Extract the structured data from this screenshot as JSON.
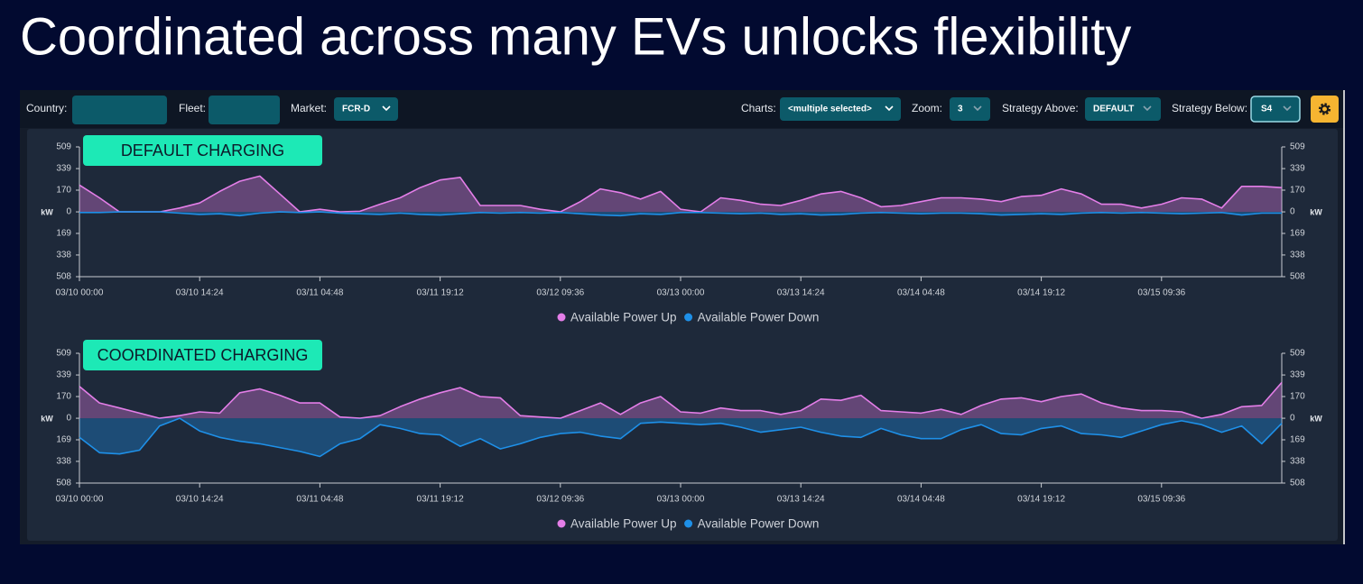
{
  "header": {
    "title": "Coordinated across many EVs unlocks flexibility"
  },
  "toolbar": {
    "country": {
      "label": "Country:"
    },
    "fleet": {
      "label": "Fleet:"
    },
    "market": {
      "label": "Market:",
      "value": "FCR-D"
    },
    "charts": {
      "label": "Charts:",
      "value": "<multiple selected>"
    },
    "zoom": {
      "label": "Zoom:",
      "value": "3"
    },
    "strategy_above": {
      "label": "Strategy Above:",
      "value": "DEFAULT"
    },
    "strategy_below": {
      "label": "Strategy Below:",
      "value": "S4"
    }
  },
  "chart_data": [
    {
      "type": "area",
      "title": "DEFAULT CHARGING",
      "x": [
        "03/10 00:00",
        "03/10 02:24",
        "03/10 04:48",
        "03/10 07:12",
        "03/10 09:36",
        "03/10 12:00",
        "03/10 14:24",
        "03/10 16:48",
        "03/10 19:12",
        "03/10 21:36",
        "03/11 00:00",
        "03/11 02:24",
        "03/11 04:48",
        "03/11 07:12",
        "03/11 09:36",
        "03/11 12:00",
        "03/11 14:24",
        "03/11 16:48",
        "03/11 19:12",
        "03/11 21:36",
        "03/12 00:00",
        "03/12 02:24",
        "03/12 04:48",
        "03/12 07:12",
        "03/12 09:36",
        "03/12 12:00",
        "03/12 14:24",
        "03/12 16:48",
        "03/12 19:12",
        "03/12 21:36",
        "03/13 00:00",
        "03/13 02:24",
        "03/13 04:48",
        "03/13 07:12",
        "03/13 09:36",
        "03/13 12:00",
        "03/13 14:24",
        "03/13 16:48",
        "03/13 19:12",
        "03/13 21:36",
        "03/14 00:00",
        "03/14 02:24",
        "03/14 04:48",
        "03/14 07:12",
        "03/14 09:36",
        "03/14 12:00",
        "03/14 14:24",
        "03/14 16:48",
        "03/14 19:12",
        "03/14 21:36",
        "03/15 00:00",
        "03/15 02:24",
        "03/15 04:48",
        "03/15 07:12",
        "03/15 09:36",
        "03/15 12:00",
        "03/15 14:24",
        "03/15 16:48",
        "03/15 19:12",
        "03/15 21:36",
        "03/16 00:00"
      ],
      "xticks": [
        "03/10 00:00",
        "03/10 14:24",
        "03/11 04:48",
        "03/11 19:12",
        "03/12 09:36",
        "03/13 00:00",
        "03/13 14:24",
        "03/14 04:48",
        "03/14 19:12",
        "03/15 09:36"
      ],
      "ylim": [
        -508,
        509
      ],
      "yticks": [
        509,
        339,
        170,
        0,
        {
          "value": -169,
          "label": "169"
        },
        {
          "value": -338,
          "label": "338"
        },
        {
          "value": -508,
          "label": "508"
        }
      ],
      "y2lim": [
        -508,
        509
      ],
      "y2ticks": [
        509,
        339,
        170,
        0,
        {
          "value": -169,
          "label": "169"
        },
        {
          "value": -338,
          "label": "338"
        },
        {
          "value": -508,
          "label": "508"
        }
      ],
      "y_label": "kW",
      "y2_label": "kW",
      "series": [
        {
          "name": "Available Power Up",
          "color": "#e47ee8",
          "values": [
            210,
            110,
            0,
            0,
            0,
            30,
            70,
            160,
            240,
            280,
            140,
            0,
            20,
            0,
            5,
            60,
            110,
            190,
            250,
            270,
            50,
            50,
            50,
            20,
            0,
            80,
            180,
            150,
            100,
            160,
            20,
            0,
            110,
            90,
            60,
            50,
            90,
            140,
            160,
            110,
            40,
            50,
            80,
            110,
            110,
            100,
            80,
            120,
            130,
            180,
            140,
            60,
            60,
            30,
            60,
            110,
            100,
            30,
            200,
            200,
            190
          ]
        },
        {
          "name": "Available Power Down",
          "color": "#1e90e8",
          "values": [
            -5,
            -5,
            0,
            0,
            0,
            -10,
            -20,
            -15,
            -30,
            -10,
            0,
            -5,
            0,
            -10,
            -15,
            -20,
            -10,
            -20,
            -25,
            -15,
            -5,
            -10,
            -5,
            -10,
            -5,
            -15,
            -25,
            -30,
            -15,
            -20,
            -5,
            -5,
            -10,
            -15,
            -10,
            -20,
            -15,
            -25,
            -20,
            -10,
            -5,
            -10,
            -15,
            -10,
            -10,
            -15,
            -25,
            -20,
            -15,
            -20,
            -10,
            -5,
            -10,
            -5,
            -10,
            -15,
            -10,
            -5,
            -25,
            -10,
            -10
          ]
        }
      ]
    },
    {
      "type": "area",
      "title": "COORDINATED CHARGING",
      "x": [
        "03/10 00:00",
        "03/10 02:24",
        "03/10 04:48",
        "03/10 07:12",
        "03/10 09:36",
        "03/10 12:00",
        "03/10 14:24",
        "03/10 16:48",
        "03/10 19:12",
        "03/10 21:36",
        "03/11 00:00",
        "03/11 02:24",
        "03/11 04:48",
        "03/11 07:12",
        "03/11 09:36",
        "03/11 12:00",
        "03/11 14:24",
        "03/11 16:48",
        "03/11 19:12",
        "03/11 21:36",
        "03/12 00:00",
        "03/12 02:24",
        "03/12 04:48",
        "03/12 07:12",
        "03/12 09:36",
        "03/12 12:00",
        "03/12 14:24",
        "03/12 16:48",
        "03/12 19:12",
        "03/12 21:36",
        "03/13 00:00",
        "03/13 02:24",
        "03/13 04:48",
        "03/13 07:12",
        "03/13 09:36",
        "03/13 12:00",
        "03/13 14:24",
        "03/13 16:48",
        "03/13 19:12",
        "03/13 21:36",
        "03/14 00:00",
        "03/14 02:24",
        "03/14 04:48",
        "03/14 07:12",
        "03/14 09:36",
        "03/14 12:00",
        "03/14 14:24",
        "03/14 16:48",
        "03/14 19:12",
        "03/14 21:36",
        "03/15 00:00",
        "03/15 02:24",
        "03/15 04:48",
        "03/15 07:12",
        "03/15 09:36",
        "03/15 12:00",
        "03/15 14:24",
        "03/15 16:48",
        "03/15 19:12",
        "03/15 21:36",
        "03/16 00:00"
      ],
      "xticks": [
        "03/10 00:00",
        "03/10 14:24",
        "03/11 04:48",
        "03/11 19:12",
        "03/12 09:36",
        "03/13 00:00",
        "03/13 14:24",
        "03/14 04:48",
        "03/14 19:12",
        "03/15 09:36"
      ],
      "ylim": [
        -508,
        509
      ],
      "yticks": [
        509,
        339,
        170,
        0,
        {
          "value": -169,
          "label": "169"
        },
        {
          "value": -338,
          "label": "338"
        },
        {
          "value": -508,
          "label": "508"
        }
      ],
      "y2lim": [
        -508,
        509
      ],
      "y2ticks": [
        509,
        339,
        170,
        0,
        {
          "value": -169,
          "label": "169"
        },
        {
          "value": -338,
          "label": "338"
        },
        {
          "value": -508,
          "label": "508"
        }
      ],
      "y_label": "kW",
      "y2_label": "kW",
      "series": [
        {
          "name": "Available Power Up",
          "color": "#e47ee8",
          "values": [
            250,
            120,
            80,
            40,
            0,
            20,
            50,
            40,
            200,
            230,
            180,
            120,
            120,
            10,
            0,
            20,
            90,
            150,
            200,
            240,
            170,
            160,
            20,
            10,
            0,
            60,
            120,
            30,
            120,
            170,
            50,
            40,
            80,
            60,
            60,
            30,
            60,
            150,
            140,
            180,
            60,
            50,
            40,
            70,
            30,
            100,
            150,
            160,
            130,
            170,
            190,
            120,
            80,
            60,
            60,
            50,
            0,
            30,
            90,
            100,
            280
          ]
        },
        {
          "name": "Available Power Down",
          "color": "#1e90e8",
          "values": [
            -150,
            -270,
            -280,
            -250,
            -60,
            0,
            -100,
            -150,
            -180,
            -200,
            -230,
            -260,
            -300,
            -200,
            -160,
            -50,
            -80,
            -120,
            -130,
            -220,
            -160,
            -240,
            -200,
            -150,
            -120,
            -110,
            -140,
            -160,
            -40,
            -30,
            -40,
            -50,
            -40,
            -70,
            -110,
            -90,
            -70,
            -110,
            -140,
            -150,
            -80,
            -130,
            -160,
            -160,
            -90,
            -50,
            -120,
            -130,
            -80,
            -60,
            -120,
            -130,
            -150,
            -100,
            -50,
            -20,
            -50,
            -110,
            -60,
            -200,
            -40
          ]
        }
      ]
    }
  ]
}
